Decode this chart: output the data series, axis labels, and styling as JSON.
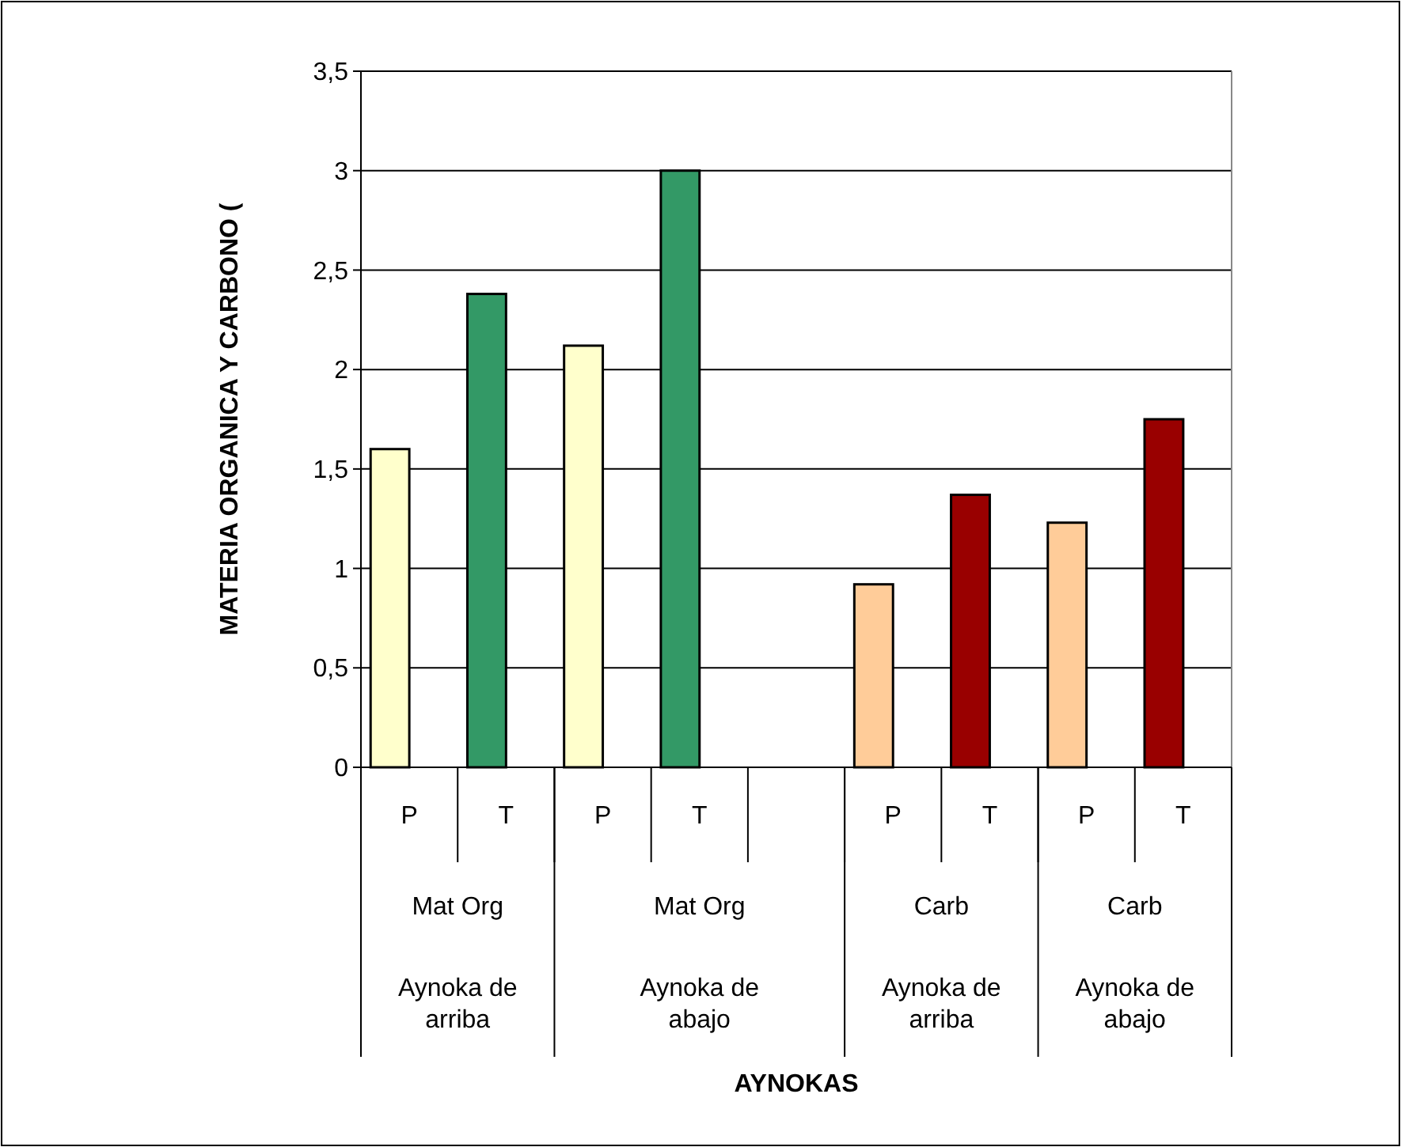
{
  "chart_data": {
    "type": "bar",
    "ylabel": "MATERIA ORGANICA Y CARBONO (",
    "categories": [
      "P",
      "T",
      "P",
      "T",
      null,
      "P",
      "T",
      "P",
      "T"
    ],
    "values": [
      1.6,
      2.38,
      2.12,
      3.0,
      null,
      0.92,
      1.37,
      1.23,
      1.75
    ],
    "colors": [
      "#ffffcc",
      "#339966",
      "#ffffcc",
      "#339966",
      null,
      "#ffcc99",
      "#990000",
      "#ffcc99",
      "#990000"
    ],
    "ylim": [
      0,
      3.5
    ],
    "yticks": [
      0,
      {
        "value": 0.5,
        "label": "0,5"
      },
      1,
      {
        "value": 1.5,
        "label": "1,5"
      },
      2,
      {
        "value": 2.5,
        "label": "2,5"
      },
      3,
      {
        "value": 3.5,
        "label": "3,5"
      }
    ],
    "grid": "y",
    "annotations": [
      "Mat Org",
      "Mat Org",
      "Carb",
      "Carb",
      "Aynoka de arriba",
      "Aynoka de abajo",
      "Aynoka de arriba",
      "Aynoka de abajo",
      "AYNOKAS"
    ]
  }
}
